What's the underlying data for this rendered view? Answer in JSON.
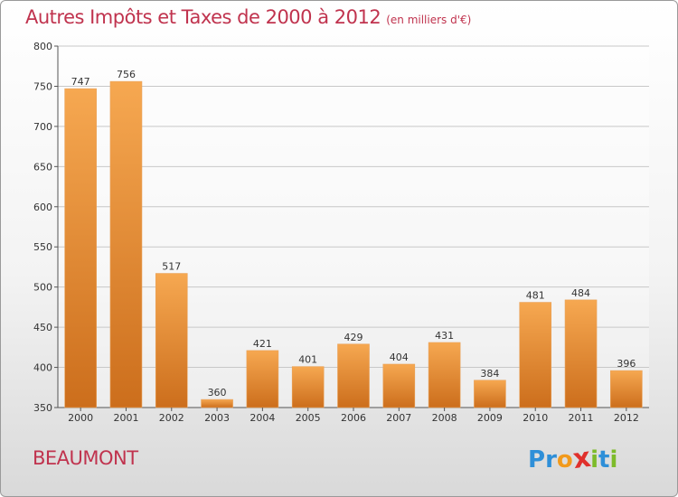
{
  "header": {
    "title": "Autres Impôts et Taxes de 2000 à 2012",
    "unit": "(en milliers d'€)"
  },
  "footer": {
    "commune": "BEAUMONT",
    "brand_letters": [
      "P",
      "r",
      "o",
      "x",
      "i",
      "t",
      "i"
    ],
    "brand_colors": [
      "#2e8fd8",
      "#2e8fd8",
      "#f29a1c",
      "#e0302c",
      "#7dbb2a",
      "#2e8fd8",
      "#7dbb2a"
    ]
  },
  "colors": {
    "title": "#c0334e",
    "bar_top": "#f6a851",
    "bar_bottom": "#cc6e1c"
  },
  "chart_data": {
    "type": "bar",
    "title": "Autres Impôts et Taxes de 2000 à 2012",
    "xlabel": "",
    "ylabel": "",
    "categories": [
      "2000",
      "2001",
      "2002",
      "2003",
      "2004",
      "2005",
      "2006",
      "2007",
      "2008",
      "2009",
      "2010",
      "2011",
      "2012"
    ],
    "values": [
      747,
      756,
      517,
      360,
      421,
      401,
      429,
      404,
      431,
      384,
      481,
      484,
      396
    ],
    "ylim": [
      350,
      800
    ],
    "yticks": [
      350,
      400,
      450,
      500,
      550,
      600,
      650,
      700,
      750,
      800
    ],
    "grid": true,
    "legend": "none"
  }
}
